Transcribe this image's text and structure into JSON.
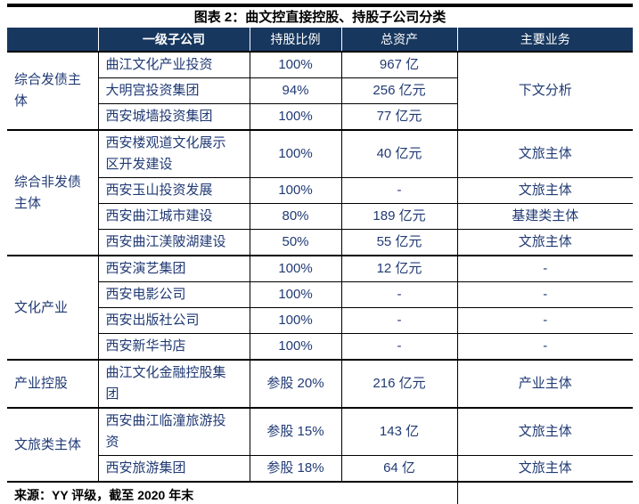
{
  "title": "图表 2：曲文控直接控股、持股子公司分类",
  "colors": {
    "header_bg": "#17375e",
    "header_text": "#ffffff",
    "body_text": "#203a74",
    "border": "#000000"
  },
  "table": {
    "columns": [
      {
        "key": "category",
        "label": ""
      },
      {
        "key": "company",
        "label": "一级子公司"
      },
      {
        "key": "ratio",
        "label": "持股比例"
      },
      {
        "key": "assets",
        "label": "总资产"
      },
      {
        "key": "business",
        "label": "主要业务"
      }
    ],
    "groups": [
      {
        "category": "综合发债主体",
        "business_merged": "下文分析",
        "rows": [
          {
            "company": "曲江文化产业投资",
            "ratio": "100%",
            "assets": "967 亿"
          },
          {
            "company": "大明宫投资集团",
            "ratio": "94%",
            "assets": "256 亿元"
          },
          {
            "company": "西安城墙投资集团",
            "ratio": "100%",
            "assets": "77 亿元"
          }
        ]
      },
      {
        "category": "综合非发债主体",
        "rows": [
          {
            "company": "西安楼观道文化展示区开发建设",
            "ratio": "100%",
            "assets": "40 亿元",
            "business": "文旅主体"
          },
          {
            "company": "西安玉山投资发展",
            "ratio": "100%",
            "assets": "-",
            "business": "文旅主体"
          },
          {
            "company": "西安曲江城市建设",
            "ratio": "80%",
            "assets": "189 亿元",
            "business": "基建类主体"
          },
          {
            "company": "西安曲江渼陂湖建设",
            "ratio": "50%",
            "assets": "55 亿元",
            "business": "文旅主体"
          }
        ]
      },
      {
        "category": "文化产业",
        "rows": [
          {
            "company": "西安演艺集团",
            "ratio": "100%",
            "assets": "12 亿元",
            "business": "-"
          },
          {
            "company": "西安电影公司",
            "ratio": "100%",
            "assets": "-",
            "business": "-"
          },
          {
            "company": "西安出版社公司",
            "ratio": "100%",
            "assets": "-",
            "business": "-"
          },
          {
            "company": "西安新华书店",
            "ratio": "100%",
            "assets": "-",
            "business": "-"
          }
        ]
      },
      {
        "category": "产业控股",
        "rows": [
          {
            "company": "曲江文化金融控股集团",
            "ratio": "参股 20%",
            "assets": "216 亿元",
            "business": "产业主体"
          }
        ]
      },
      {
        "category": "文旅类主体",
        "rows": [
          {
            "company": "西安曲江临潼旅游投资",
            "ratio": "参股 15%",
            "assets": "143 亿",
            "business": "文旅主体"
          },
          {
            "company": "西安旅游集团",
            "ratio": "参股 18%",
            "assets": "64 亿",
            "business": "文旅主体"
          }
        ]
      }
    ],
    "footer": "来源：YY 评级，截至 2020 年末"
  }
}
